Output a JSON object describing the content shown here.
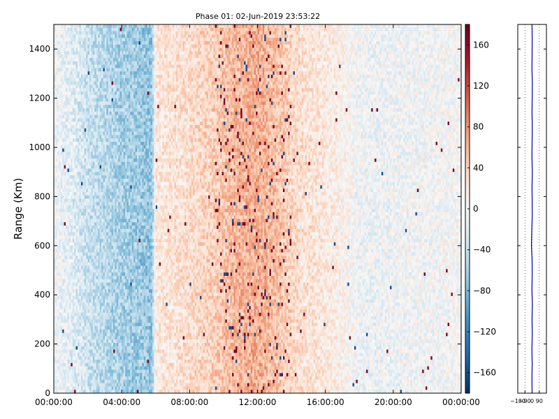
{
  "chart_data": [
    {
      "type": "heatmap",
      "title": "Phase 01: 02-Jun-2019 23:53:22",
      "ylabel": "Range (Km)",
      "xlabel": "",
      "x_tick_labels": [
        "00:00:00",
        "04:00:00",
        "08:00:00",
        "12:00:00",
        "16:00:00",
        "20:00:00",
        "00:00:00"
      ],
      "x_range_hours": [
        0,
        24
      ],
      "y_ticks": [
        0,
        200,
        400,
        600,
        800,
        1000,
        1200,
        1400
      ],
      "ylim": [
        0,
        1500
      ],
      "colorbar": {
        "ticks": [
          -160,
          -120,
          -80,
          -40,
          0,
          40,
          80,
          120,
          160
        ],
        "vmin": -180,
        "vmax": 180,
        "colormap": "RdBu_r"
      },
      "colormap_stops": [
        "#053061",
        "#2166ac",
        "#4393c3",
        "#92c5de",
        "#d1e5f0",
        "#f7f7f7",
        "#fddbc7",
        "#f4a582",
        "#d6604d",
        "#b2182b",
        "#67001f"
      ],
      "grid": false,
      "phase_profile_by_hour": [
        {
          "hour": 0,
          "phase": -8
        },
        {
          "hour": 1,
          "phase": -20
        },
        {
          "hour": 2,
          "phase": -38
        },
        {
          "hour": 3,
          "phase": -50
        },
        {
          "hour": 4,
          "phase": -60
        },
        {
          "hour": 5,
          "phase": -65
        },
        {
          "hour": 5.8,
          "phase": -70
        },
        {
          "hour": 6,
          "phase": 20
        },
        {
          "hour": 7,
          "phase": 25
        },
        {
          "hour": 8,
          "phase": 30
        },
        {
          "hour": 9,
          "phase": 38
        },
        {
          "hour": 10,
          "phase": 50
        },
        {
          "hour": 11,
          "phase": 60
        },
        {
          "hour": 12,
          "phase": 65
        },
        {
          "hour": 13,
          "phase": 55
        },
        {
          "hour": 14,
          "phase": 35
        },
        {
          "hour": 15,
          "phase": 25
        },
        {
          "hour": 16,
          "phase": 18
        },
        {
          "hour": 17,
          "phase": 10
        },
        {
          "hour": 18,
          "phase": -8
        },
        {
          "hour": 19,
          "phase": -10
        },
        {
          "hour": 20,
          "phase": -8
        },
        {
          "hour": 22,
          "phase": -5
        },
        {
          "hour": 24,
          "phase": -3
        }
      ]
    },
    {
      "type": "line",
      "title": "",
      "xlabel": "",
      "ylabel": "",
      "x_tick_values": [
        -180,
        -90,
        0,
        90
      ],
      "x_tick_labels": [
        "−180",
        "−90",
        "0",
        "90"
      ],
      "xlim": [
        -180,
        180
      ],
      "ylim": [
        0,
        1500
      ],
      "grid": "vertical dotted",
      "line_color": "#0000aa",
      "series": [
        {
          "x": [
            0,
            -2,
            1,
            -3,
            2,
            -1,
            3,
            -2,
            1,
            0,
            -8,
            -4,
            2,
            1,
            -1,
            3,
            -2,
            0,
            2,
            -1,
            1,
            3,
            -2,
            0,
            1,
            -1
          ],
          "y": [
            0,
            60,
            120,
            180,
            240,
            300,
            360,
            420,
            480,
            540,
            600,
            660,
            720,
            780,
            840,
            900,
            960,
            1020,
            1080,
            1140,
            1200,
            1260,
            1320,
            1380,
            1440,
            1500
          ]
        }
      ]
    }
  ]
}
